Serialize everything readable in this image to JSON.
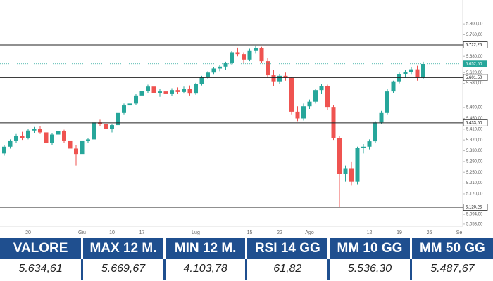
{
  "chart_data": {
    "type": "candlestick",
    "categories": [
      null,
      null,
      null,
      null,
      "20",
      null,
      null,
      null,
      null,
      null,
      null,
      null,
      null,
      "Giu",
      null,
      null,
      null,
      null,
      "10",
      null,
      null,
      null,
      null,
      "17",
      null,
      null,
      null,
      null,
      null,
      null,
      null,
      null,
      "Lug",
      null,
      null,
      null,
      null,
      null,
      null,
      null,
      null,
      "15",
      null,
      null,
      null,
      null,
      "22",
      null,
      null,
      null,
      null,
      "Ago",
      null,
      null,
      null,
      null,
      null,
      null,
      null,
      null,
      null,
      "12",
      null,
      null,
      null,
      null,
      "19",
      null,
      null,
      null,
      null,
      "26",
      null,
      null,
      null,
      null,
      "Se"
    ],
    "series": [
      {
        "name": "open",
        "values": [
          5320,
          5345,
          5368,
          5385,
          5378,
          5405,
          5410,
          5398,
          5358,
          5390,
          5402,
          5368,
          5338,
          5318,
          5368,
          5372,
          5435,
          5428,
          5410,
          5425,
          5470,
          5498,
          5505,
          5535,
          5552,
          5568,
          5545,
          5550,
          5540,
          5555,
          5548,
          5560,
          5542,
          5578,
          5602,
          5620,
          5635,
          5642,
          5655,
          5695,
          5688,
          5668,
          5702,
          5710,
          5662,
          5610,
          5585,
          5608,
          5600,
          5475,
          5450,
          5495,
          5512,
          5555,
          5570,
          5490,
          5378,
          5245,
          5265,
          5215,
          5340,
          5345,
          5365,
          5435,
          5470,
          5550,
          5585,
          5615,
          5622,
          5632,
          5600,
          null,
          null,
          null,
          null,
          null,
          null
        ]
      },
      {
        "name": "high",
        "values": [
          5352,
          5372,
          5392,
          5400,
          5412,
          5418,
          5420,
          5405,
          5395,
          5410,
          5408,
          5378,
          5352,
          5375,
          5378,
          5440,
          5445,
          5440,
          5430,
          5475,
          5505,
          5512,
          5540,
          5560,
          5575,
          5572,
          5558,
          5555,
          5562,
          5565,
          5568,
          5572,
          5582,
          5608,
          5625,
          5640,
          5648,
          5660,
          5700,
          5712,
          5695,
          5708,
          5720,
          5715,
          5675,
          5630,
          5615,
          5620,
          5605,
          5495,
          5505,
          5520,
          5560,
          5578,
          5575,
          5500,
          5385,
          5275,
          5290,
          5345,
          5355,
          5372,
          5440,
          5478,
          5560,
          5590,
          5620,
          5630,
          5640,
          5645,
          5660,
          null,
          null,
          null,
          null,
          null,
          null
        ]
      },
      {
        "name": "low",
        "values": [
          5312,
          5338,
          5360,
          5370,
          5372,
          5395,
          5392,
          5350,
          5352,
          5380,
          5360,
          5330,
          5275,
          5312,
          5360,
          5368,
          5420,
          5400,
          5398,
          5420,
          5465,
          5488,
          5500,
          5528,
          5545,
          5540,
          5530,
          5535,
          5532,
          5540,
          5542,
          5535,
          5538,
          5572,
          5598,
          5612,
          5625,
          5630,
          5650,
          5680,
          5655,
          5662,
          5690,
          5655,
          5600,
          5570,
          5578,
          5590,
          5465,
          5440,
          5442,
          5485,
          5505,
          5540,
          5480,
          5370,
          5120,
          5215,
          5200,
          5205,
          5320,
          5335,
          5360,
          5430,
          5465,
          5545,
          5580,
          5600,
          5612,
          5590,
          5595,
          null,
          null,
          null,
          null,
          null,
          null
        ]
      },
      {
        "name": "close",
        "values": [
          5345,
          5368,
          5385,
          5378,
          5405,
          5410,
          5398,
          5358,
          5390,
          5402,
          5368,
          5338,
          5318,
          5368,
          5372,
          5435,
          5428,
          5410,
          5425,
          5470,
          5498,
          5505,
          5535,
          5552,
          5568,
          5545,
          5550,
          5540,
          5555,
          5548,
          5560,
          5542,
          5578,
          5602,
          5620,
          5635,
          5642,
          5655,
          5695,
          5688,
          5668,
          5702,
          5710,
          5662,
          5610,
          5585,
          5608,
          5600,
          5475,
          5450,
          5495,
          5512,
          5555,
          5570,
          5490,
          5378,
          5245,
          5265,
          5215,
          5340,
          5345,
          5365,
          5435,
          5470,
          5550,
          5585,
          5615,
          5622,
          5632,
          5600,
          5652,
          null,
          null,
          null,
          null,
          null,
          null
        ]
      }
    ],
    "up_color": "#26a69a",
    "down_color": "#ef5350",
    "ylim": [
      5050,
      5889
    ],
    "yticks": [
      {
        "value": 5058,
        "label": "5.058,00"
      },
      {
        "value": 5094,
        "label": "5.094,00"
      },
      {
        "value": 5170,
        "label": "5.170,00"
      },
      {
        "value": 5210,
        "label": "5.210,00"
      },
      {
        "value": 5250,
        "label": "5.250,00"
      },
      {
        "value": 5290,
        "label": "5.290,00"
      },
      {
        "value": 5330,
        "label": "5.330,00"
      },
      {
        "value": 5370,
        "label": "5.370,00"
      },
      {
        "value": 5410,
        "label": "5.410,00"
      },
      {
        "value": 5450,
        "label": "5.450,00"
      },
      {
        "value": 5490,
        "label": "5.490,00"
      },
      {
        "value": 5580,
        "label": "5.580,00"
      },
      {
        "value": 5620,
        "label": "5.620,00"
      },
      {
        "value": 5680,
        "label": "5.680,00"
      },
      {
        "value": 5760,
        "label": "5.760,00"
      },
      {
        "value": 5800,
        "label": "5.800,00"
      }
    ],
    "levels": [
      {
        "value": 5722.25,
        "label": "5.722,25"
      },
      {
        "value": 5601.5,
        "label": "5.601,50"
      },
      {
        "value": 5433.5,
        "label": "5.433,50"
      },
      {
        "value": 5120.25,
        "label": "5.120,25"
      }
    ],
    "last_price": {
      "value": 5652.5,
      "label": "5.652,50",
      "color": "#26a69a"
    }
  },
  "table": {
    "header": [
      "VALORE",
      "MAX 12 M.",
      "MIN 12 M.",
      "RSI 14 GG",
      "MM 10 GG",
      "MM 50 GG"
    ],
    "row": [
      "5.634,61",
      "5.669,67",
      "4.103,78",
      "61,82",
      "5.536,30",
      "5.487,67"
    ]
  }
}
